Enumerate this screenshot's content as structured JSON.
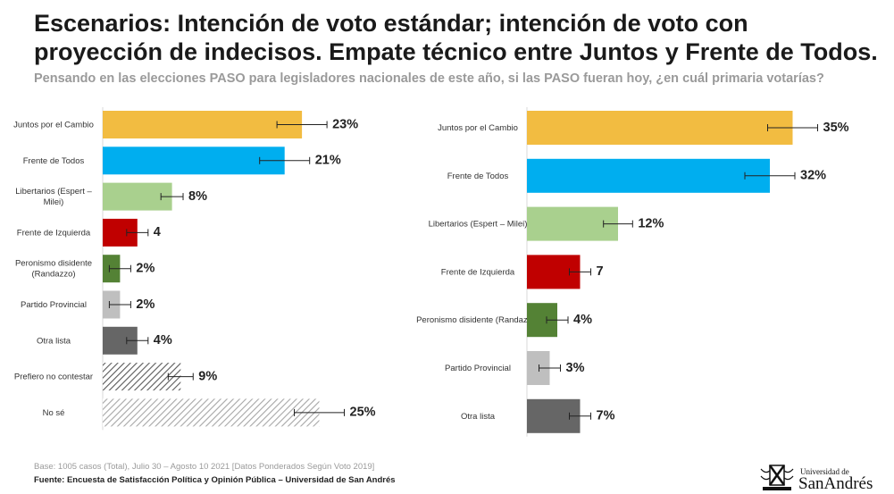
{
  "title": "Escenarios: Intención de voto estándar; intención de voto con proyección de indecisos. Empate técnico entre Juntos y Frente de Todos.",
  "subtitle": "Pensando en las elecciones PASO para legisladores nacionales de este año, si las PASO fueran hoy, ¿en cuál primaria votarías?",
  "footer": {
    "base": "Base: 1005 casos (Total), Julio 30 – Agosto 10 2021 [Datos Ponderados Según Voto 2019]",
    "source": "Fuente: Encuesta de Satisfacción Política y Opinión Pública – Universidad de San Andrés"
  },
  "logo": {
    "top": "Universidad de",
    "main": "SanAndrés"
  },
  "colors": {
    "juntos": "#f2bc41",
    "frente_todos": "#00aeef",
    "libertarios": "#a9d08e",
    "izquierda": "#c00000",
    "peronismo": "#548235",
    "provincial": "#bfbfbf",
    "otra": "#666666",
    "prefiero": "#595959",
    "nose": "#a6a6a6"
  },
  "chart_data": [
    {
      "type": "bar",
      "orientation": "horizontal",
      "categories": [
        "Juntos por el Cambio",
        "Frente de Todos",
        "Libertarios (Espert – Milei)",
        "Frente de Izquierda",
        "Peronismo disidente (Randazzo)",
        "Partido Provincial",
        "Otra lista",
        "Prefiero no contestar",
        "No sé"
      ],
      "values": [
        23,
        21,
        8,
        4,
        2,
        2,
        4,
        9,
        25
      ],
      "labels": [
        "23%",
        "21%",
        "8%",
        "4",
        "2%",
        "2%",
        "4%",
        "9%",
        "25%"
      ],
      "error_bars": true,
      "colors": [
        "#f2bc41",
        "#00aeef",
        "#a9d08e",
        "#c00000",
        "#548235",
        "#bfbfbf",
        "#666666",
        "#595959",
        "#a6a6a6"
      ],
      "patterns": [
        "solid",
        "solid",
        "solid",
        "solid",
        "solid",
        "solid",
        "solid",
        "hatch-dark",
        "hatch-light"
      ]
    },
    {
      "type": "bar",
      "orientation": "horizontal",
      "categories": [
        "Juntos por el Cambio",
        "Frente de Todos",
        "Libertarios (Espert – Milei)",
        "Frente de Izquierda",
        "Peronismo disidente (Randazzo)",
        "Partido Provincial",
        "Otra lista"
      ],
      "values": [
        35,
        32,
        12,
        7,
        4,
        3,
        7
      ],
      "labels": [
        "35%",
        "32%",
        "12%",
        "7",
        "4%",
        "3%",
        "7%"
      ],
      "error_bars": true,
      "colors": [
        "#f2bc41",
        "#00aeef",
        "#a9d08e",
        "#c00000",
        "#548235",
        "#bfbfbf",
        "#666666"
      ],
      "patterns": [
        "solid",
        "solid",
        "solid",
        "solid",
        "solid",
        "solid",
        "solid"
      ]
    }
  ]
}
